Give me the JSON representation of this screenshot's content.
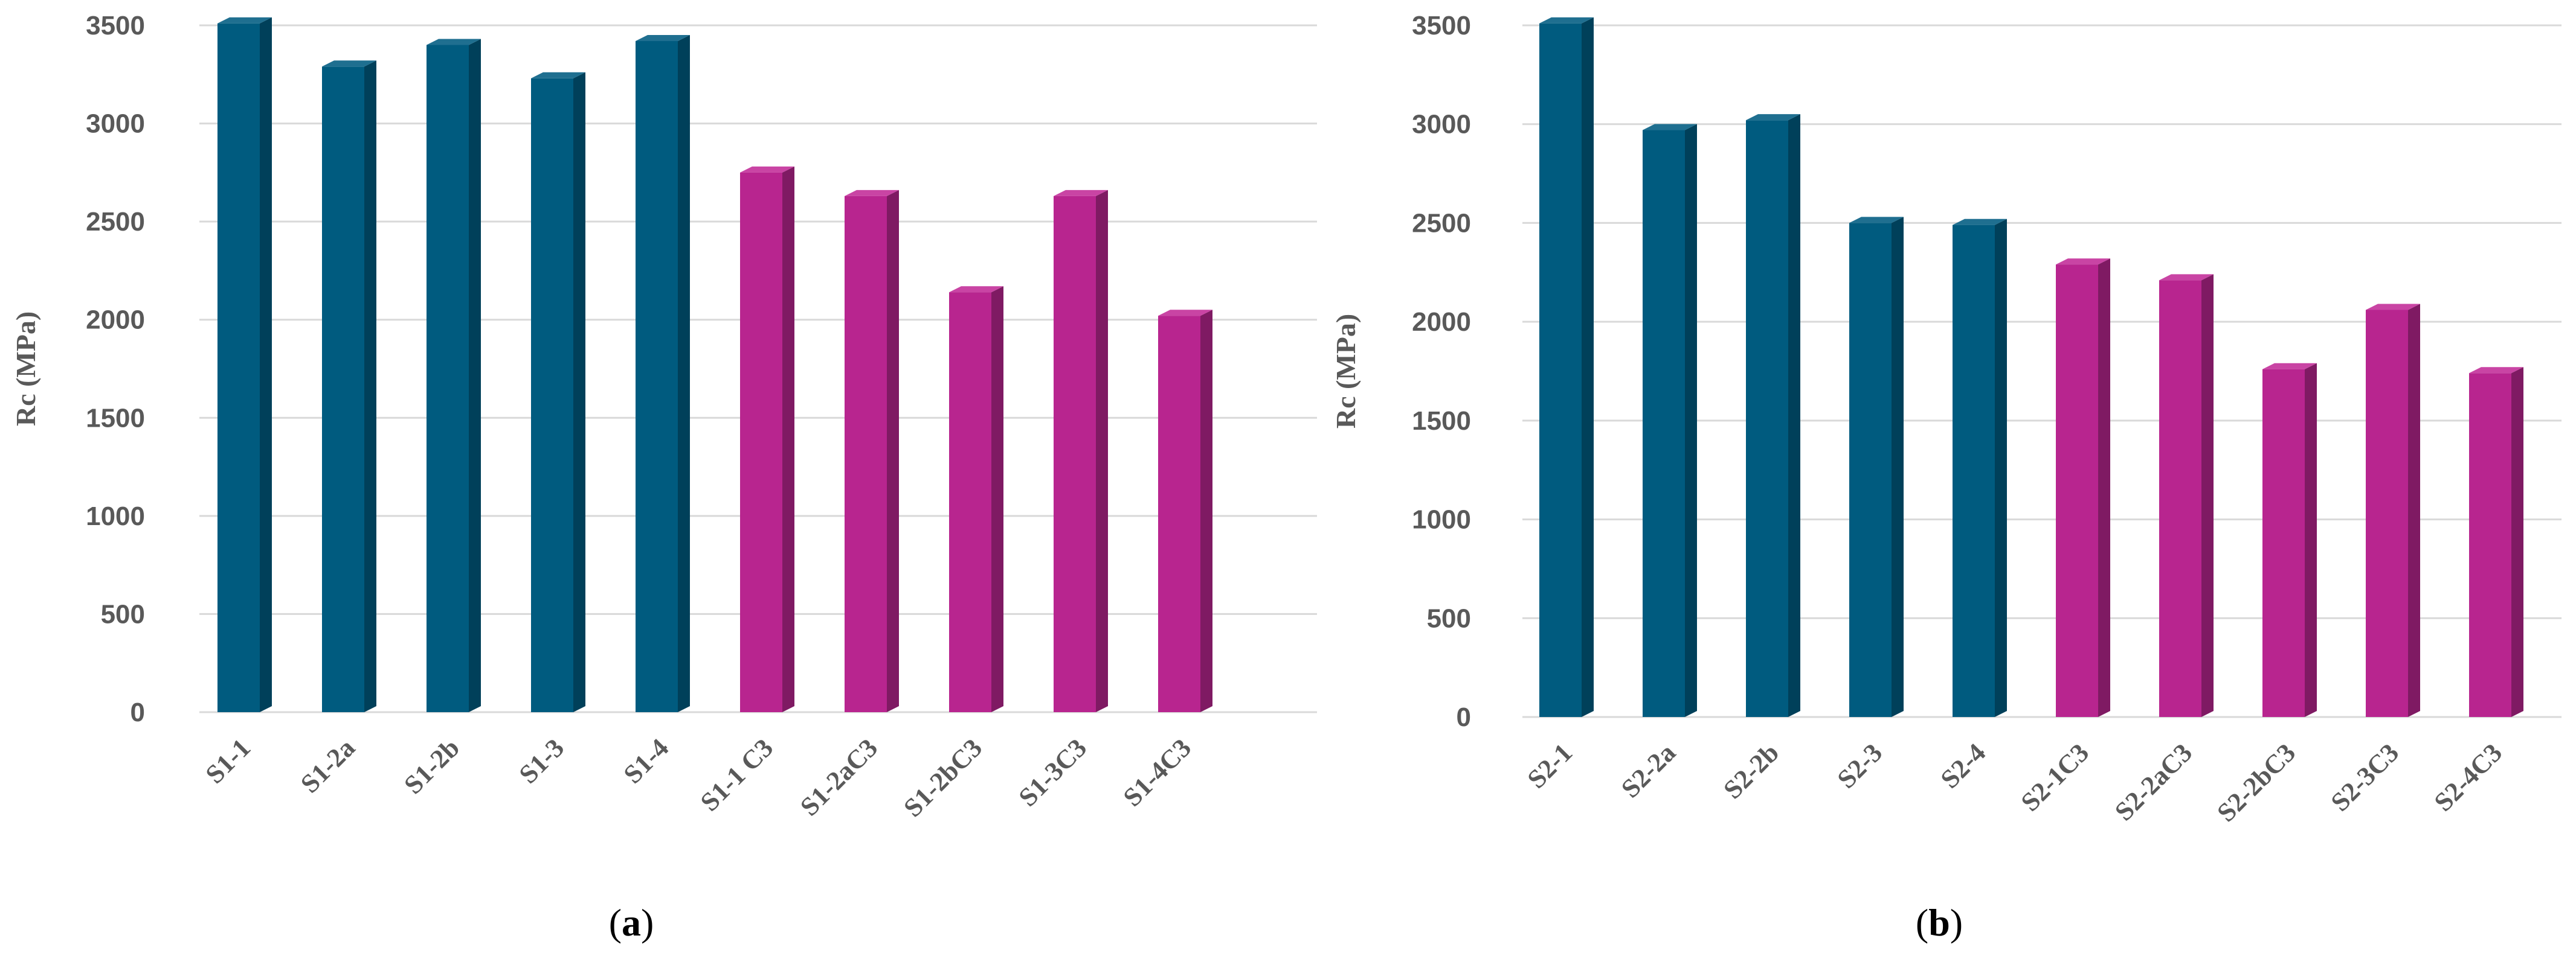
{
  "colors": {
    "series_a_front": "#005b7f",
    "series_a_side": "#00405a",
    "series_a_top": "#1f6f90",
    "series_b_front": "#b8258f",
    "series_b_side": "#7f1a63",
    "series_b_top": "#c944a4",
    "grid": "#d9d9d9",
    "text": "#595959"
  },
  "chart_data": [
    {
      "type": "bar",
      "panel_label": "a",
      "ylabel": "Rc (MPa)",
      "xlabel": "",
      "ylim": [
        0,
        3500
      ],
      "yticks": [
        0,
        500,
        1000,
        1500,
        2000,
        2500,
        3000,
        3500
      ],
      "grid": true,
      "legend": "none",
      "categories": [
        "S1-1",
        "S1-2a",
        "S1-2b",
        "S1-3",
        "S1-4",
        "S1-1 C3",
        "S1-2aC3",
        "S1-2bC3",
        "S1-3C3",
        "S1-4C3"
      ],
      "values": [
        3510,
        3290,
        3400,
        3230,
        3420,
        2750,
        2630,
        2140,
        2630,
        2020
      ],
      "bar_colors": [
        "teal",
        "teal",
        "teal",
        "teal",
        "teal",
        "magenta",
        "magenta",
        "magenta",
        "magenta",
        "magenta"
      ]
    },
    {
      "type": "bar",
      "panel_label": "b",
      "ylabel": "Rc (MPa)",
      "xlabel": "",
      "ylim": [
        0,
        3500
      ],
      "yticks": [
        0,
        500,
        1000,
        1500,
        2000,
        2500,
        3000,
        3500
      ],
      "grid": true,
      "legend": "none",
      "categories": [
        "S2-1",
        "S2-2a",
        "S2-2b",
        "S2-3",
        "S2-4",
        "S2-1C3",
        "S2-2aC3",
        "S2-2bC3",
        "S2-3C3",
        "S2-4C3"
      ],
      "values": [
        3510,
        2970,
        3020,
        2500,
        2490,
        2290,
        2210,
        1760,
        2060,
        1740
      ],
      "bar_colors": [
        "teal",
        "teal",
        "teal",
        "teal",
        "teal",
        "magenta",
        "magenta",
        "magenta",
        "magenta",
        "magenta"
      ]
    }
  ]
}
